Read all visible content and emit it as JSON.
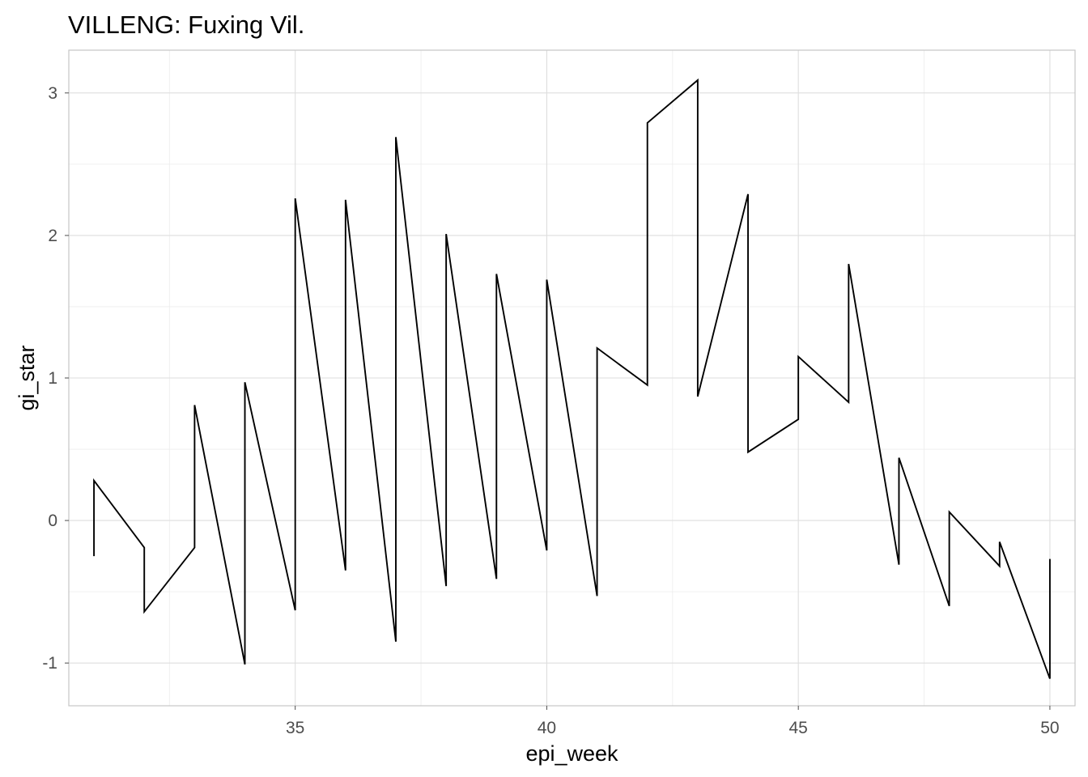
{
  "chart_data": {
    "type": "line",
    "title": "VILLENG: Fuxing Vil.",
    "xlabel": "epi_week",
    "ylabel": "gi_star",
    "xlim": [
      30.5,
      50.5
    ],
    "ylim": [
      -1.3,
      3.3
    ],
    "x_ticks": [
      35,
      40,
      45,
      50
    ],
    "y_ticks": [
      -1,
      0,
      1,
      2,
      3
    ],
    "grid": true,
    "legend": "none",
    "series": [
      {
        "color": "#000000",
        "points": [
          [
            31,
            -0.25
          ],
          [
            31,
            0.28
          ],
          [
            32,
            -0.19
          ],
          [
            32,
            -0.64
          ],
          [
            33,
            -0.19
          ],
          [
            33,
            0.81
          ],
          [
            34,
            -1.01
          ],
          [
            34,
            0.97
          ],
          [
            35,
            -0.63
          ],
          [
            35,
            2.26
          ],
          [
            36,
            -0.35
          ],
          [
            36,
            2.25
          ],
          [
            37,
            -0.85
          ],
          [
            37,
            2.69
          ],
          [
            38,
            -0.46
          ],
          [
            38,
            2.01
          ],
          [
            39,
            -0.41
          ],
          [
            39,
            1.73
          ],
          [
            40,
            -0.21
          ],
          [
            40,
            1.69
          ],
          [
            41,
            -0.53
          ],
          [
            41,
            1.21
          ],
          [
            42,
            0.95
          ],
          [
            42,
            2.79
          ],
          [
            43,
            3.09
          ],
          [
            43,
            0.87
          ],
          [
            44,
            2.29
          ],
          [
            44,
            0.48
          ],
          [
            45,
            0.71
          ],
          [
            45,
            1.15
          ],
          [
            46,
            0.83
          ],
          [
            46,
            1.8
          ],
          [
            47,
            -0.31
          ],
          [
            47,
            0.44
          ],
          [
            48,
            -0.6
          ],
          [
            48,
            0.06
          ],
          [
            49,
            -0.32
          ],
          [
            49,
            -0.15
          ],
          [
            50,
            -1.11
          ],
          [
            50,
            -0.27
          ]
        ]
      }
    ]
  }
}
